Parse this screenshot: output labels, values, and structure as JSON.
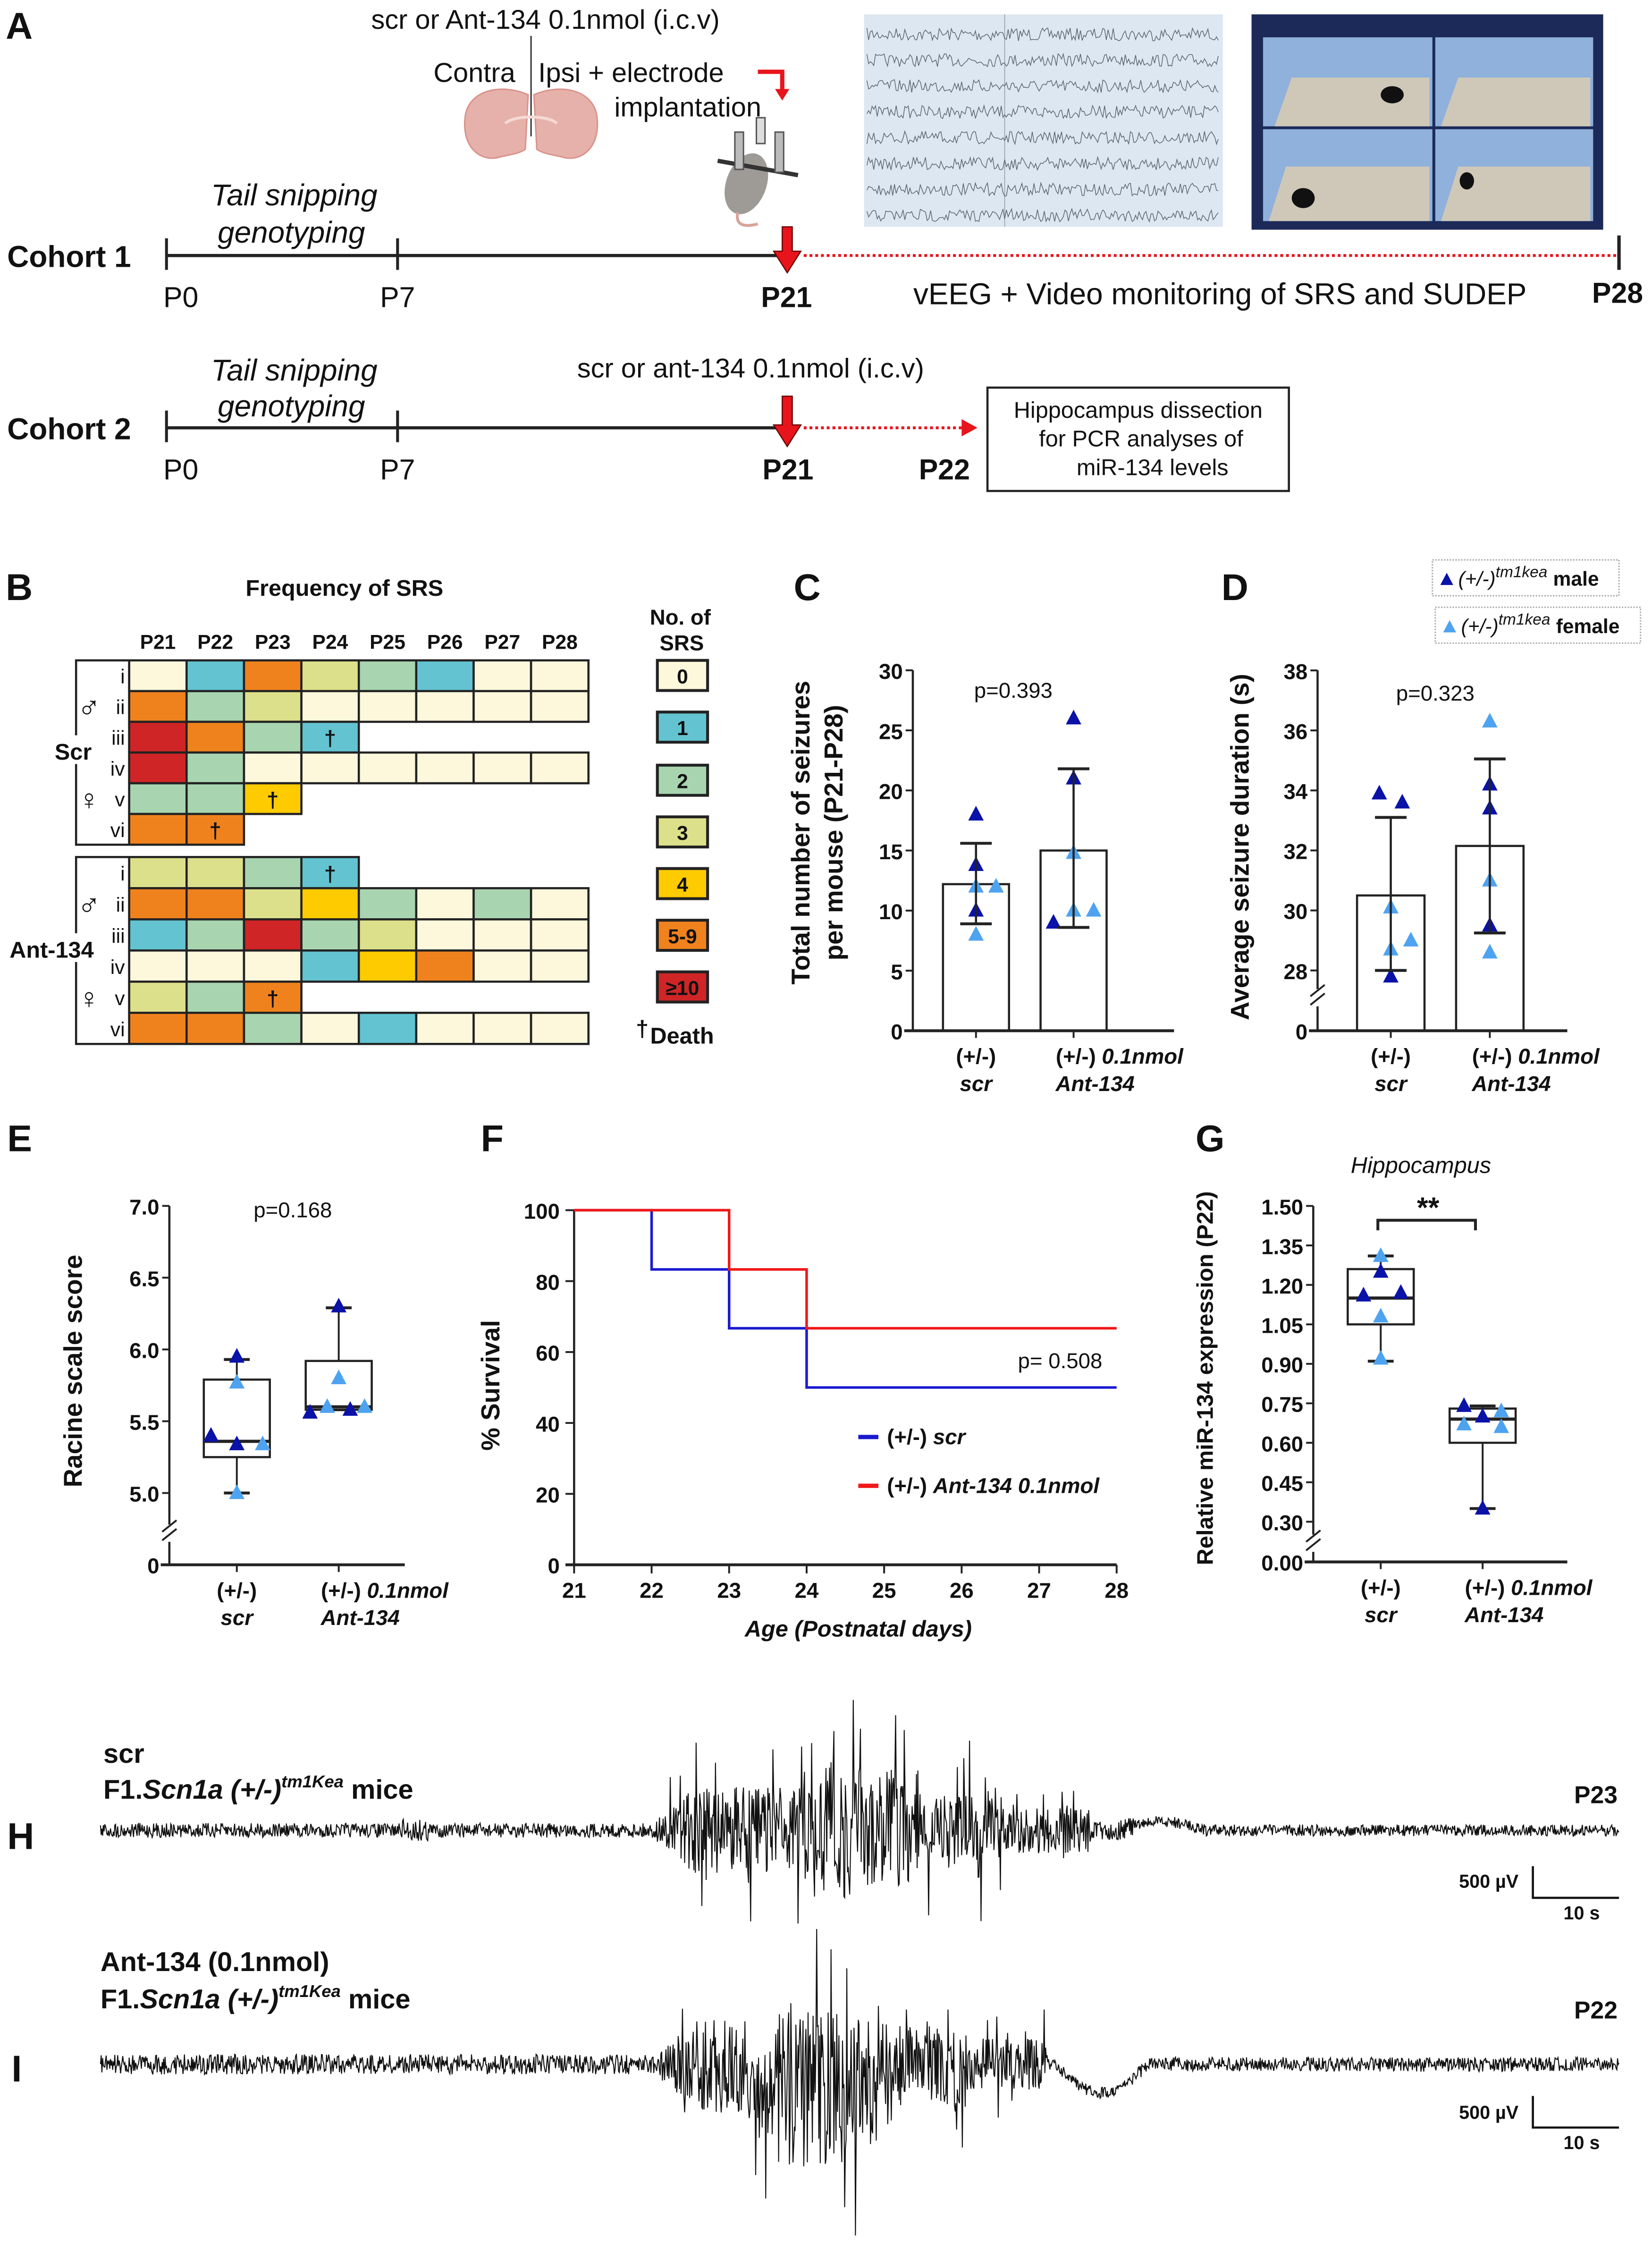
{
  "panel_labels": {
    "A": "A",
    "B": "B",
    "C": "C",
    "D": "D",
    "E": "E",
    "F": "F",
    "G": "G",
    "H": "H",
    "I": "I"
  },
  "panelA": {
    "injection_label": "scr or Ant-134  0.1nmol (i.c.v)",
    "contra": "Contra",
    "ipsi": "Ipsi + electrode",
    "implantation": "implantation",
    "cohort1": {
      "name": "Cohort 1",
      "tail": "Tail snipping",
      "geno": "genotyping",
      "ticks": [
        "P0",
        "P7",
        "P21",
        "P28"
      ],
      "monitoring": "vEEG + Video monitoring of SRS and SUDEP"
    },
    "cohort2": {
      "name": "Cohort 2",
      "tail": "Tail snipping",
      "geno": "genotyping",
      "injection": "scr or ant-134 0.1nmol (i.c.v)",
      "ticks": [
        "P0",
        "P7",
        "P21",
        "P22"
      ],
      "box": [
        "Hippocampus dissection",
        "for PCR analyses of",
        "miR-134 levels"
      ]
    }
  },
  "colors": {
    "male": "#0a12a8",
    "female": "#4ea3f0",
    "scr_line": "#1a1ad0",
    "ant_line": "#f01818",
    "accent_red": "#e8141c",
    "heat": [
      "#fdf8dc",
      "#63c3d1",
      "#a8d5b0",
      "#dde08a",
      "#fdcb00",
      "#f0821e",
      "#cf2526"
    ]
  },
  "chart_data": [
    {
      "type": "heatmap",
      "title": "Frequency of SRS",
      "columns": [
        "P21",
        "P22",
        "P23",
        "P24",
        "P25",
        "P26",
        "P27",
        "P28"
      ],
      "legend_title": [
        "No. of",
        "SRS"
      ],
      "legend": [
        "0",
        "1",
        "2",
        "3",
        "4",
        "5-9",
        "≥10"
      ],
      "death_symbol": "†",
      "death_label": "Death",
      "male_symbol": "♂",
      "female_symbol": "♀",
      "groups": [
        {
          "name": "Scr",
          "rows": [
            {
              "id": "i",
              "values": [
                0,
                1,
                5,
                3,
                2,
                1,
                0,
                0
              ],
              "death": null
            },
            {
              "id": "ii",
              "values": [
                5,
                2,
                3,
                0,
                0,
                0,
                0,
                0
              ],
              "death": null
            },
            {
              "id": "iii",
              "values": [
                6,
                5,
                2,
                1
              ],
              "death": 3
            },
            {
              "id": "iv",
              "values": [
                6,
                2,
                0,
                0,
                0,
                0,
                0,
                0
              ],
              "death": null
            },
            {
              "id": "v",
              "values": [
                2,
                2,
                4
              ],
              "death": 2
            },
            {
              "id": "vi",
              "values": [
                5,
                5
              ],
              "death": 1
            }
          ]
        },
        {
          "name": "Ant-134",
          "rows": [
            {
              "id": "i",
              "values": [
                3,
                3,
                2,
                1
              ],
              "death": 3
            },
            {
              "id": "ii",
              "values": [
                5,
                5,
                3,
                4,
                2,
                0,
                2,
                0
              ],
              "death": null
            },
            {
              "id": "iii",
              "values": [
                1,
                2,
                6,
                2,
                3,
                0,
                0,
                0
              ],
              "death": null
            },
            {
              "id": "iv",
              "values": [
                0,
                0,
                0,
                1,
                4,
                5,
                0,
                0
              ],
              "death": null
            },
            {
              "id": "v",
              "values": [
                3,
                2,
                5
              ],
              "death": 2
            },
            {
              "id": "vi",
              "values": [
                5,
                5,
                2,
                0,
                1,
                0,
                0,
                0
              ],
              "death": null
            }
          ]
        }
      ]
    },
    {
      "type": "bar",
      "ylabel": [
        "Total number of seizures",
        "per mouse (P21-P28)"
      ],
      "ylim": [
        0,
        30
      ],
      "yticks": [
        "0",
        "5",
        "10",
        "15",
        "20",
        "25",
        "30"
      ],
      "pvalue": "p=0.393",
      "categories": [
        {
          "line1": "(+/-)",
          "extra": "",
          "line2": "scr"
        },
        {
          "line1": "(+/-)",
          "extra": "0.1nmol",
          "line2": "Ant-134"
        }
      ],
      "series": [
        {
          "name": "scr",
          "mean": 12.2,
          "err": [
            8.9,
            15.6
          ],
          "points": [
            {
              "v": 18,
              "sex": "male"
            },
            {
              "v": 13.8,
              "sex": "male"
            },
            {
              "v": 12,
              "sex": "female"
            },
            {
              "v": 12,
              "sex": "female"
            },
            {
              "v": 10,
              "sex": "male"
            },
            {
              "v": 8,
              "sex": "female"
            }
          ]
        },
        {
          "name": "Ant-134",
          "mean": 15,
          "err": [
            8.6,
            21.8
          ],
          "points": [
            {
              "v": 26,
              "sex": "male"
            },
            {
              "v": 21,
              "sex": "male"
            },
            {
              "v": 14.8,
              "sex": "female"
            },
            {
              "v": 10,
              "sex": "female"
            },
            {
              "v": 10,
              "sex": "female"
            },
            {
              "v": 9,
              "sex": "male"
            }
          ]
        }
      ]
    },
    {
      "type": "bar",
      "ylabel": [
        "Average seizure duration (s)"
      ],
      "ylim": [
        0,
        38
      ],
      "axis_break": [
        0,
        28
      ],
      "yticks": [
        "0",
        "28",
        "30",
        "32",
        "34",
        "36",
        "38"
      ],
      "pvalue": "p=0.323",
      "legend": [
        {
          "prefix": "(+/-)",
          "sup": "tm1kea",
          "label": "male"
        },
        {
          "prefix": "(+/-)",
          "sup": "tm1kea",
          "label": "female"
        }
      ],
      "categories": [
        {
          "line1": "(+/-)",
          "extra": "",
          "line2": "scr"
        },
        {
          "line1": "(+/-)",
          "extra": "0.1nmol",
          "line2": "Ant-134"
        }
      ],
      "series": [
        {
          "name": "scr",
          "mean": 30.5,
          "err": [
            28,
            33.1
          ],
          "points": [
            {
              "v": 33.9,
              "sex": "male"
            },
            {
              "v": 33.6,
              "sex": "male"
            },
            {
              "v": 30.1,
              "sex": "female"
            },
            {
              "v": 28.7,
              "sex": "female"
            },
            {
              "v": 29,
              "sex": "female"
            },
            {
              "v": 27.8,
              "sex": "male"
            }
          ]
        },
        {
          "name": "Ant-134",
          "mean": 32.15,
          "err": [
            29.25,
            35.05
          ],
          "points": [
            {
              "v": 36.3,
              "sex": "female"
            },
            {
              "v": 34.2,
              "sex": "male"
            },
            {
              "v": 33.4,
              "sex": "male"
            },
            {
              "v": 31,
              "sex": "female"
            },
            {
              "v": 29.5,
              "sex": "male"
            },
            {
              "v": 28.6,
              "sex": "female"
            }
          ]
        }
      ]
    },
    {
      "type": "box",
      "ylabel": [
        "Racine scale score"
      ],
      "ylim": [
        0,
        7
      ],
      "axis_break": [
        0,
        5
      ],
      "yticks": [
        "0",
        "5.0",
        "5.5",
        "6.0",
        "6.5",
        "7.0"
      ],
      "pvalue": "p=0.168",
      "categories": [
        {
          "line1": "(+/-)",
          "extra": "",
          "line2": "scr"
        },
        {
          "line1": "(+/-)",
          "extra": "0.1nmol",
          "line2": "Ant-134"
        }
      ],
      "series": [
        {
          "name": "scr",
          "min": 5.0,
          "q1": 5.25,
          "median": 5.36,
          "q3": 5.79,
          "max": 5.93,
          "points": [
            {
              "v": 5.95,
              "sex": "male"
            },
            {
              "v": 5.77,
              "sex": "female"
            },
            {
              "v": 5.4,
              "sex": "male"
            },
            {
              "v": 5.34,
              "sex": "male"
            },
            {
              "v": 5.34,
              "sex": "female"
            },
            {
              "v": 5.0,
              "sex": "female"
            }
          ]
        },
        {
          "name": "Ant-134",
          "min": 5.58,
          "q1": 5.58,
          "median": 5.6,
          "q3": 5.92,
          "max": 6.29,
          "points": [
            {
              "v": 6.3,
              "sex": "male"
            },
            {
              "v": 5.8,
              "sex": "female"
            },
            {
              "v": 5.56,
              "sex": "male"
            },
            {
              "v": 5.6,
              "sex": "female"
            },
            {
              "v": 5.58,
              "sex": "male"
            },
            {
              "v": 5.6,
              "sex": "female"
            }
          ]
        }
      ]
    },
    {
      "type": "line",
      "ylabel": "% Survival",
      "xlabel": "Age (Postnatal days)",
      "xlim": [
        21,
        28
      ],
      "ylim": [
        0,
        100
      ],
      "xticks": [
        "21",
        "22",
        "23",
        "24",
        "25",
        "26",
        "27",
        "28"
      ],
      "yticks": [
        "0",
        "20",
        "40",
        "60",
        "80",
        "100"
      ],
      "pvalue": "p= 0.508",
      "series": [
        {
          "name": "(+/-)",
          "name_it": "scr",
          "color": "#1a1ad0",
          "x": [
            21,
            22,
            22,
            23,
            23,
            24,
            24,
            28
          ],
          "y": [
            100,
            100,
            83.3,
            83.3,
            66.7,
            66.7,
            50,
            50
          ]
        },
        {
          "name": "(+/-)",
          "name_it": "Ant-134 0.1nmol",
          "color": "#f01818",
          "x": [
            21,
            23,
            23,
            24,
            24,
            28
          ],
          "y": [
            100,
            100,
            83.3,
            83.3,
            66.7,
            66.7
          ]
        }
      ],
      "legend_position": "center-right"
    },
    {
      "type": "box",
      "title": "Hippocampus",
      "ylabel": [
        "Relative miR-134 expression (P22)"
      ],
      "ylim": [
        0,
        1.5
      ],
      "axis_break": [
        0,
        0.3
      ],
      "yticks": [
        "0.00",
        "0.30",
        "0.45",
        "0.60",
        "0.75",
        "0.90",
        "1.05",
        "1.20",
        "1.35",
        "1.50"
      ],
      "significance": "**",
      "categories": [
        {
          "line1": "(+/-)",
          "extra": "",
          "line2": "scr"
        },
        {
          "line1": "(+/-)",
          "extra": "0.1nmol",
          "line2": "Ant-134"
        }
      ],
      "series": [
        {
          "name": "scr",
          "min": 0.91,
          "q1": 1.05,
          "median": 1.15,
          "q3": 1.26,
          "max": 1.31,
          "points": [
            {
              "v": 1.31,
              "sex": "female"
            },
            {
              "v": 1.25,
              "sex": "male"
            },
            {
              "v": 1.16,
              "sex": "male"
            },
            {
              "v": 1.17,
              "sex": "male"
            },
            {
              "v": 1.08,
              "sex": "female"
            },
            {
              "v": 0.92,
              "sex": "female"
            }
          ]
        },
        {
          "name": "Ant-134",
          "min": 0.35,
          "q1": 0.6,
          "median": 0.69,
          "q3": 0.73,
          "max": 0.74,
          "points": [
            {
              "v": 0.74,
              "sex": "male"
            },
            {
              "v": 0.72,
              "sex": "female"
            },
            {
              "v": 0.7,
              "sex": "male"
            },
            {
              "v": 0.67,
              "sex": "female"
            },
            {
              "v": 0.66,
              "sex": "female"
            },
            {
              "v": 0.35,
              "sex": "male"
            }
          ]
        }
      ]
    }
  ],
  "traces": {
    "H": {
      "line1": "scr",
      "prefix": "F1.",
      "gene": "Scn1a",
      "genotype": " (+/-)",
      "allele": "tm1Kea",
      "suffix": " mice",
      "age": "P23",
      "scale_v": "500 µV",
      "scale_t": "10 s"
    },
    "I": {
      "line1": "Ant-134 (0.1nmol)",
      "prefix": "F1.",
      "gene": "Scn1a",
      "genotype": " (+/-)",
      "allele": "tm1Kea",
      "suffix": " mice",
      "age": "P22",
      "scale_v": "500 µV",
      "scale_t": "10 s"
    }
  }
}
